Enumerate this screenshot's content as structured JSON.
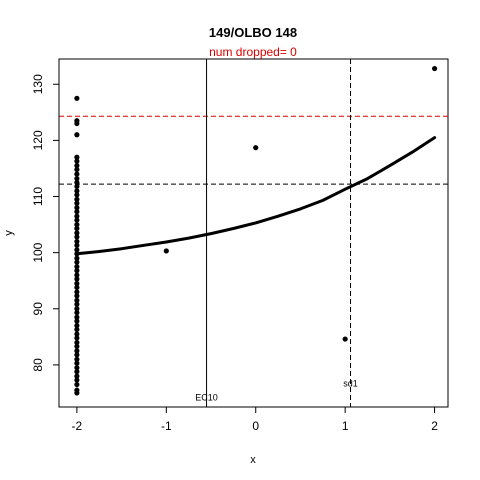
{
  "chart_data": {
    "type": "scatter",
    "title": "149/OLBO 148",
    "subtitle": "num dropped= 0",
    "xlabel": "x",
    "ylabel": "y",
    "xlim": [
      -2.2,
      2.15
    ],
    "ylim": [
      72.5,
      134.5
    ],
    "xticks": [
      -2,
      -1,
      0,
      1,
      2
    ],
    "xtick_labels": [
      "-2",
      "-1",
      "0",
      "1",
      "2"
    ],
    "yticks": [
      80,
      90,
      100,
      110,
      120,
      130
    ],
    "ytick_labels": [
      "80",
      "90",
      "100",
      "110",
      "120",
      "130"
    ],
    "grid": false,
    "points": [
      {
        "x": -2,
        "y": 127.5
      },
      {
        "x": -2,
        "y": 123.5
      },
      {
        "x": -2,
        "y": 123
      },
      {
        "x": -2,
        "y": 121
      },
      {
        "x": -2,
        "y": 117
      },
      {
        "x": -2,
        "y": 116.3
      },
      {
        "x": -2,
        "y": 115.5
      },
      {
        "x": -2,
        "y": 114.8
      },
      {
        "x": -2,
        "y": 114
      },
      {
        "x": -2,
        "y": 113.2
      },
      {
        "x": -2,
        "y": 112.5
      },
      {
        "x": -2,
        "y": 111.8
      },
      {
        "x": -2,
        "y": 111
      },
      {
        "x": -2,
        "y": 110.3
      },
      {
        "x": -2,
        "y": 109.5
      },
      {
        "x": -2,
        "y": 108.8
      },
      {
        "x": -2,
        "y": 108
      },
      {
        "x": -2,
        "y": 107.3
      },
      {
        "x": -2,
        "y": 106.5
      },
      {
        "x": -2,
        "y": 105.8
      },
      {
        "x": -2,
        "y": 105
      },
      {
        "x": -2,
        "y": 104.3
      },
      {
        "x": -2,
        "y": 103.5
      },
      {
        "x": -2,
        "y": 102.8
      },
      {
        "x": -2,
        "y": 102
      },
      {
        "x": -2,
        "y": 101.3
      },
      {
        "x": -2,
        "y": 100.5
      },
      {
        "x": -2,
        "y": 99.8
      },
      {
        "x": -2,
        "y": 99
      },
      {
        "x": -2,
        "y": 98.3
      },
      {
        "x": -2,
        "y": 97.5
      },
      {
        "x": -2,
        "y": 96.8
      },
      {
        "x": -2,
        "y": 96
      },
      {
        "x": -2,
        "y": 95.3
      },
      {
        "x": -2,
        "y": 94.5
      },
      {
        "x": -2,
        "y": 93.8
      },
      {
        "x": -2,
        "y": 93
      },
      {
        "x": -2,
        "y": 92.3
      },
      {
        "x": -2,
        "y": 91.5
      },
      {
        "x": -2,
        "y": 90.8
      },
      {
        "x": -2,
        "y": 90
      },
      {
        "x": -2,
        "y": 89.3
      },
      {
        "x": -2,
        "y": 88.5
      },
      {
        "x": -2,
        "y": 87.8
      },
      {
        "x": -2,
        "y": 87
      },
      {
        "x": -2,
        "y": 86.3
      },
      {
        "x": -2,
        "y": 85.5
      },
      {
        "x": -2,
        "y": 84.8
      },
      {
        "x": -2,
        "y": 84
      },
      {
        "x": -2,
        "y": 83.3
      },
      {
        "x": -2,
        "y": 82.5
      },
      {
        "x": -2,
        "y": 81.8
      },
      {
        "x": -2,
        "y": 81
      },
      {
        "x": -2,
        "y": 80.3
      },
      {
        "x": -2,
        "y": 79.5
      },
      {
        "x": -2,
        "y": 78.8
      },
      {
        "x": -2,
        "y": 78
      },
      {
        "x": -2,
        "y": 77.3
      },
      {
        "x": -2,
        "y": 76.5
      },
      {
        "x": -2,
        "y": 75.5
      },
      {
        "x": -2,
        "y": 75
      },
      {
        "x": -1,
        "y": 100.3
      },
      {
        "x": 0,
        "y": 118.7
      },
      {
        "x": 1,
        "y": 84.6
      },
      {
        "x": 2,
        "y": 132.8
      }
    ],
    "fit_curve": {
      "x": [
        -2,
        -1.75,
        -1.5,
        -1.25,
        -1,
        -0.75,
        -0.5,
        -0.25,
        0,
        0.25,
        0.5,
        0.75,
        1,
        1.25,
        1.5,
        1.75,
        2
      ],
      "y": [
        99.8,
        100.2,
        100.7,
        101.3,
        101.9,
        102.6,
        103.4,
        104.3,
        105.3,
        106.5,
        107.8,
        109.3,
        111.3,
        113.2,
        115.5,
        117.9,
        120.5
      ]
    },
    "reference_lines": [
      {
        "orientation": "horizontal",
        "value": 124.3,
        "style": "dashed",
        "color": "#dd0000"
      },
      {
        "orientation": "horizontal",
        "value": 112.2,
        "style": "dashed",
        "color": "#000000"
      },
      {
        "orientation": "vertical",
        "value": -0.55,
        "style": "solid",
        "color": "#000000",
        "label": "EC10",
        "label_y": 74.2
      },
      {
        "orientation": "vertical",
        "value": 1.06,
        "style": "dashed",
        "color": "#000000",
        "label": "sd1",
        "label_y": 76.7
      }
    ]
  }
}
